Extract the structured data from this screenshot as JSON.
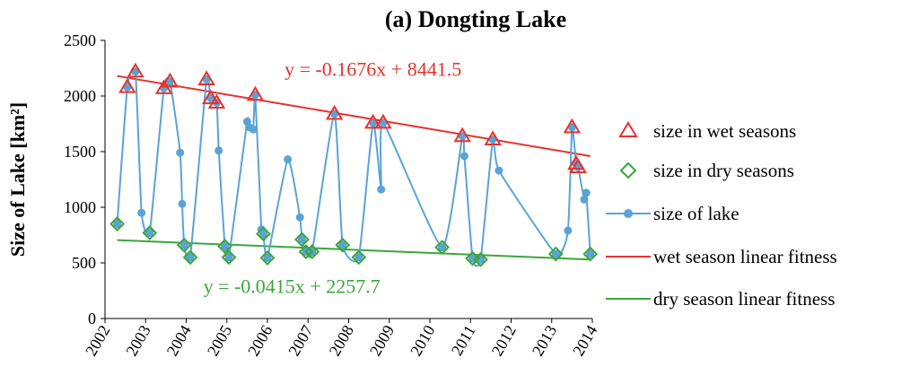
{
  "chart_data": {
    "type": "line",
    "title": "(a) Dongting Lake",
    "ylabel": "Size of Lake [km²]",
    "xlabel": "",
    "xlim": [
      2002,
      2014
    ],
    "ylim": [
      0,
      2500
    ],
    "x_ticks": [
      "2002",
      "2003",
      "2004",
      "2005",
      "2006",
      "2007",
      "2008",
      "2009",
      "2010",
      "2011",
      "2012",
      "2013",
      "2014"
    ],
    "y_ticks": [
      "0",
      "500",
      "1000",
      "1500",
      "2000",
      "2500"
    ],
    "grid": false,
    "legend_position": "right",
    "colors": {
      "lake": "#5ba3d6",
      "wet": "#e8312d",
      "dry": "#3aa63a"
    },
    "series": [
      {
        "name": "size in wet seasons",
        "marker": "triangle",
        "x": [
          2002.55,
          2002.75,
          2003.45,
          2003.6,
          2004.5,
          2004.6,
          2004.75,
          2005.7,
          2007.65,
          2008.6,
          2008.85,
          2010.8,
          2011.55,
          2013.5,
          2013.6,
          2013.65
        ],
        "y": [
          2080,
          2220,
          2070,
          2130,
          2150,
          1980,
          1940,
          2010,
          1840,
          1760,
          1760,
          1640,
          1610,
          1720,
          1390,
          1360
        ]
      },
      {
        "name": "size in dry seasons",
        "marker": "diamond",
        "x": [
          2002.3,
          2003.1,
          2003.95,
          2004.1,
          2004.95,
          2005.05,
          2005.9,
          2006.0,
          2006.85,
          2006.95,
          2007.1,
          2007.85,
          2008.25,
          2010.3,
          2011.05,
          2011.25,
          2013.1,
          2013.95
        ],
        "y": [
          850,
          770,
          660,
          550,
          650,
          550,
          760,
          545,
          710,
          600,
          600,
          660,
          550,
          640,
          540,
          530,
          580,
          580
        ]
      },
      {
        "name": "size of lake",
        "marker": "circle",
        "x": [
          2002.3,
          2002.55,
          2002.75,
          2002.9,
          2003.1,
          2003.45,
          2003.6,
          2003.85,
          2003.9,
          2003.95,
          2004.1,
          2004.5,
          2004.6,
          2004.75,
          2004.8,
          2004.95,
          2005.05,
          2005.5,
          2005.55,
          2005.65,
          2005.7,
          2005.85,
          2005.9,
          2006.0,
          2006.5,
          2006.8,
          2006.85,
          2006.95,
          2007.1,
          2007.65,
          2007.85,
          2008.25,
          2008.6,
          2008.8,
          2008.85,
          2010.3,
          2010.8,
          2010.85,
          2011.05,
          2011.25,
          2011.55,
          2011.7,
          2013.1,
          2013.4,
          2013.5,
          2013.6,
          2013.65,
          2013.8,
          2013.85,
          2013.95
        ],
        "y": [
          850,
          2080,
          2220,
          950,
          770,
          2070,
          2130,
          1490,
          1030,
          660,
          550,
          2150,
          1980,
          1940,
          1510,
          650,
          550,
          1770,
          1720,
          1700,
          2010,
          800,
          760,
          545,
          1430,
          910,
          710,
          600,
          600,
          1840,
          660,
          550,
          1760,
          1160,
          1760,
          640,
          1640,
          1460,
          540,
          530,
          1610,
          1330,
          580,
          790,
          1720,
          1390,
          1360,
          1070,
          1130,
          580
        ]
      },
      {
        "name": "wet season linear fitness",
        "type": "line",
        "x": [
          2002.3,
          2013.95
        ],
        "y": [
          2180,
          1460
        ]
      },
      {
        "name": "dry season linear fitness",
        "type": "line",
        "x": [
          2002.3,
          2013.95
        ],
        "y": [
          705,
          530
        ]
      }
    ],
    "annotations": [
      {
        "text": "y = -0.1676x + 8441.5",
        "color": "#e8312d",
        "x": 2008.6,
        "y": 2180
      },
      {
        "text": "y = -0.0415x + 2257.7",
        "color": "#3aa63a",
        "x": 2006.6,
        "y": 230
      }
    ]
  }
}
